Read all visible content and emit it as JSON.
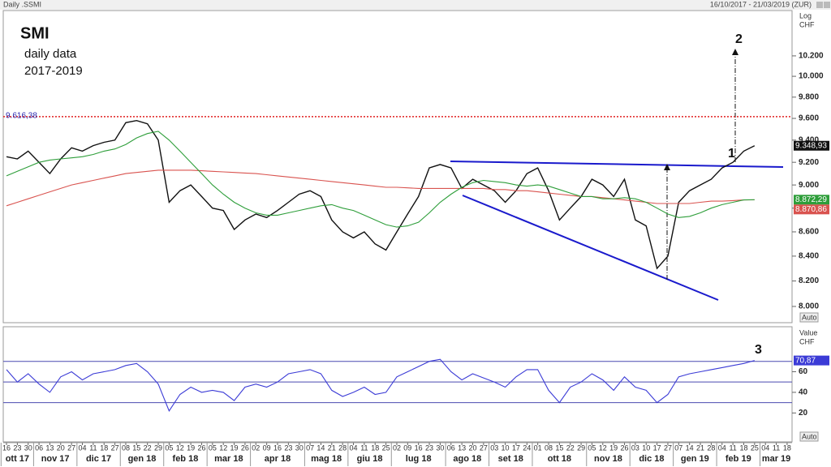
{
  "header": {
    "left": "Daily .SSMI",
    "right": "16/10/2017 - 21/03/2019 (ZUR)"
  },
  "chart_data": [
    {
      "type": "line",
      "log_scale": true,
      "grid": false,
      "axis_label": [
        "Log",
        "CHF"
      ],
      "ylim": [
        7875,
        10650
      ],
      "yticks": [
        {
          "value": 8000,
          "label": "8.000"
        },
        {
          "value": 8200,
          "label": "8.200"
        },
        {
          "value": 8400,
          "label": "8.400"
        },
        {
          "value": 8600,
          "label": "8.600"
        },
        {
          "value": 8800,
          "label": "8.800"
        },
        {
          "value": 9000,
          "label": "9.000"
        },
        {
          "value": 9200,
          "label": "9.200"
        },
        {
          "value": 9400,
          "label": "9.400"
        },
        {
          "value": 9600,
          "label": "9.600"
        },
        {
          "value": 9800,
          "label": "9.800"
        },
        {
          "value": 10000,
          "label": "10.000"
        },
        {
          "value": 10200,
          "label": "10.200"
        }
      ],
      "reference_line": {
        "value": 9616.38,
        "label": "9.616,38",
        "color": "#e02020"
      },
      "annotations": [
        "SMI",
        "daily data",
        "2017-2019",
        "1",
        "2"
      ],
      "button": "Auto",
      "series": [
        {
          "color": "#111111",
          "last_value_label": "9.348,93",
          "values": [
            9250,
            9230,
            9300,
            9200,
            9100,
            9230,
            9330,
            9300,
            9350,
            9380,
            9400,
            9560,
            9580,
            9550,
            9400,
            8850,
            8950,
            9000,
            8900,
            8800,
            8780,
            8620,
            8700,
            8750,
            8720,
            8780,
            8850,
            8920,
            8950,
            8900,
            8700,
            8600,
            8550,
            8600,
            8500,
            8450,
            8600,
            8750,
            8900,
            9150,
            9180,
            9150,
            8970,
            9050,
            9000,
            8950,
            8850,
            8950,
            9100,
            9150,
            8950,
            8700,
            8800,
            8900,
            9050,
            9000,
            8900,
            9050,
            8700,
            8650,
            8300,
            8400,
            8850,
            8950,
            9000,
            9050,
            9150,
            9200,
            9300,
            9348.93,
            null,
            null,
            null
          ]
        },
        {
          "color": "#d9534f",
          "last_value_label": "8.870,86",
          "values": [
            8820,
            8850,
            8880,
            8910,
            8940,
            8970,
            9000,
            9020,
            9040,
            9060,
            9080,
            9100,
            9110,
            9120,
            9130,
            9130,
            9130,
            9130,
            9125,
            9120,
            9115,
            9110,
            9105,
            9100,
            9090,
            9080,
            9070,
            9060,
            9050,
            9040,
            9030,
            9020,
            9010,
            9000,
            8990,
            8980,
            8980,
            8975,
            8970,
            8970,
            8970,
            8970,
            8970,
            8970,
            8970,
            8960,
            8960,
            8950,
            8950,
            8940,
            8930,
            8920,
            8910,
            8900,
            8900,
            8890,
            8880,
            8870,
            8860,
            8850,
            8840,
            8840,
            8840,
            8840,
            8850,
            8860,
            8860,
            8865,
            8870,
            8870.86,
            null,
            null,
            null
          ]
        },
        {
          "color": "#2e9e3a",
          "last_value_label": "8.872,29",
          "values": [
            9080,
            9120,
            9160,
            9200,
            9220,
            9230,
            9240,
            9250,
            9270,
            9300,
            9320,
            9360,
            9420,
            9460,
            9480,
            9400,
            9300,
            9200,
            9100,
            9000,
            8920,
            8850,
            8800,
            8760,
            8740,
            8740,
            8760,
            8780,
            8800,
            8820,
            8830,
            8800,
            8780,
            8740,
            8700,
            8660,
            8640,
            8650,
            8680,
            8760,
            8850,
            8920,
            8980,
            9020,
            9040,
            9030,
            9020,
            9000,
            8990,
            9000,
            8990,
            8960,
            8930,
            8900,
            8900,
            8880,
            8880,
            8890,
            8880,
            8850,
            8800,
            8750,
            8720,
            8730,
            8760,
            8800,
            8830,
            8850,
            8870,
            8872.29,
            null,
            null,
            null
          ]
        }
      ]
    },
    {
      "type": "line",
      "grid": false,
      "axis_label": [
        "Value",
        "CHF"
      ],
      "ylim": [
        -8,
        102
      ],
      "yticks": [
        20,
        40,
        60
      ],
      "levels": [
        30,
        50,
        70
      ],
      "annotations": [
        "3"
      ],
      "button": "Auto",
      "categories": [
        "16",
        "23",
        "30",
        "06",
        "13",
        "20",
        "27",
        "04",
        "11",
        "18",
        "27",
        "08",
        "15",
        "22",
        "29",
        "05",
        "12",
        "19",
        "26",
        "05",
        "12",
        "19",
        "26",
        "02",
        "09",
        "16",
        "23",
        "30",
        "07",
        "14",
        "21",
        "28",
        "04",
        "11",
        "18",
        "25",
        "02",
        "09",
        "16",
        "23",
        "30",
        "06",
        "13",
        "20",
        "27",
        "03",
        "10",
        "17",
        "24",
        "01",
        "08",
        "15",
        "22",
        "29",
        "05",
        "12",
        "19",
        "26",
        "03",
        "10",
        "17",
        "27",
        "07",
        "14",
        "21",
        "28",
        "04",
        "11",
        "18",
        "25",
        "04",
        "11",
        "18"
      ],
      "month_labels": [
        "ott 17",
        "nov 17",
        "dic 17",
        "gen 18",
        "feb 18",
        "mar 18",
        "apr 18",
        "mag 18",
        "giu 18",
        "lug 18",
        "ago 18",
        "set 18",
        "ott 18",
        "nov 18",
        "dic 18",
        "gen 19",
        "feb 19",
        "mar 19"
      ],
      "series": [
        {
          "color": "#3b3bd6",
          "last_value_label": "70,87",
          "values": [
            62,
            50,
            58,
            48,
            40,
            55,
            60,
            52,
            58,
            60,
            62,
            66,
            68,
            60,
            48,
            22,
            38,
            45,
            40,
            42,
            40,
            32,
            45,
            48,
            45,
            50,
            58,
            60,
            62,
            58,
            42,
            36,
            40,
            45,
            38,
            40,
            55,
            60,
            65,
            70,
            72,
            60,
            52,
            58,
            54,
            50,
            45,
            55,
            62,
            62,
            42,
            30,
            45,
            50,
            58,
            52,
            42,
            55,
            45,
            42,
            30,
            38,
            55,
            58,
            60,
            62,
            64,
            66,
            68,
            70.87,
            null,
            null,
            null
          ]
        }
      ]
    }
  ]
}
